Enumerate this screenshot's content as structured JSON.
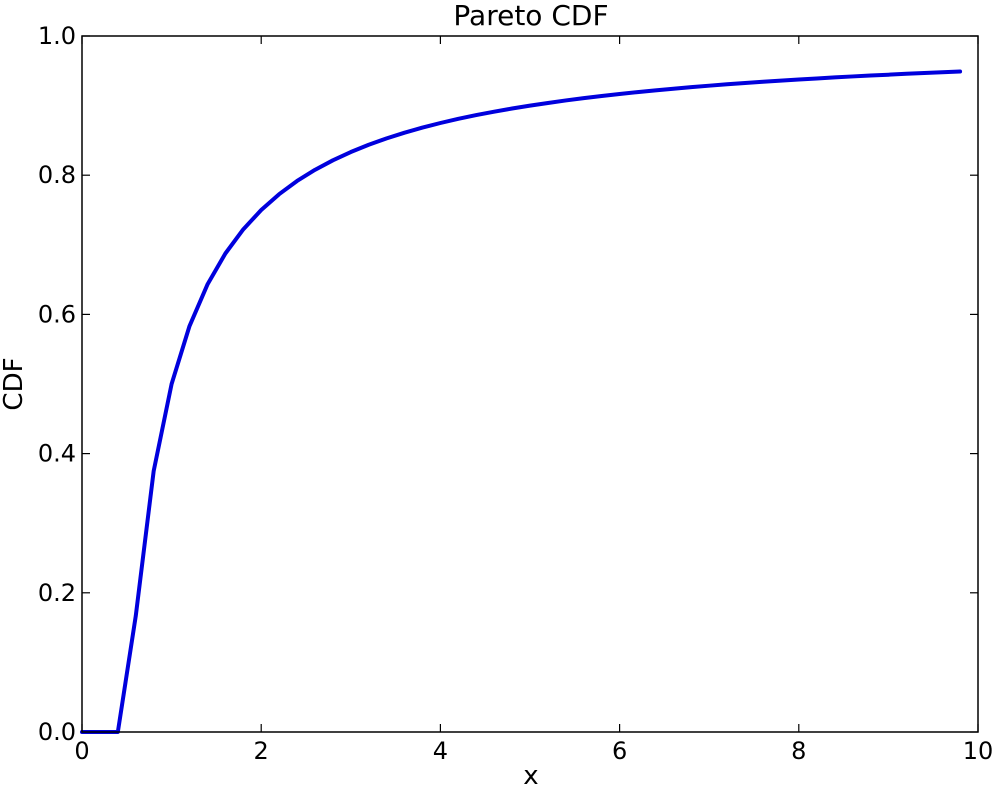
{
  "chart_data": {
    "type": "line",
    "title": "Pareto CDF",
    "xlabel": "x",
    "ylabel": "CDF",
    "xlim": [
      0,
      10
    ],
    "ylim": [
      0,
      1.0
    ],
    "xticks": [
      0,
      2,
      4,
      6,
      8,
      10
    ],
    "xtick_labels": [
      "0",
      "2",
      "4",
      "6",
      "8",
      "10"
    ],
    "yticks": [
      0,
      0.2,
      0.4,
      0.6,
      0.8,
      1.0
    ],
    "ytick_labels": [
      "0.0",
      "0.2",
      "0.4",
      "0.6",
      "0.8",
      "1.0"
    ],
    "grid": false,
    "legend": false,
    "series": [
      {
        "color": "#0000dd",
        "x": [
          0,
          0.2,
          0.4,
          0.6,
          0.8,
          1.0,
          1.2,
          1.4,
          1.6,
          1.8,
          2.0,
          2.2,
          2.4,
          2.6,
          2.8,
          3.0,
          3.2,
          3.4,
          3.6,
          3.8,
          4.0,
          4.2,
          4.4,
          4.6,
          4.8,
          5.0,
          5.2,
          5.4,
          5.6,
          5.8,
          6.0,
          6.2,
          6.4,
          6.6,
          6.8,
          7.0,
          7.2,
          7.4,
          7.6,
          7.8,
          8.0,
          8.2,
          8.4,
          8.6,
          8.8,
          9.0,
          9.2,
          9.4,
          9.6,
          9.8
        ],
        "y": [
          0.0,
          0.0,
          0.0,
          0.1667,
          0.375,
          0.5,
          0.5833,
          0.6429,
          0.6875,
          0.7222,
          0.75,
          0.7727,
          0.7917,
          0.8077,
          0.8214,
          0.8333,
          0.8438,
          0.8529,
          0.8611,
          0.8684,
          0.875,
          0.881,
          0.8864,
          0.8913,
          0.8958,
          0.9,
          0.9038,
          0.9074,
          0.9107,
          0.9138,
          0.9167,
          0.9194,
          0.9219,
          0.9242,
          0.9265,
          0.9286,
          0.9306,
          0.9324,
          0.9342,
          0.9359,
          0.9375,
          0.939,
          0.9405,
          0.9419,
          0.9432,
          0.9444,
          0.9457,
          0.9468,
          0.9479,
          0.949
        ]
      }
    ]
  }
}
